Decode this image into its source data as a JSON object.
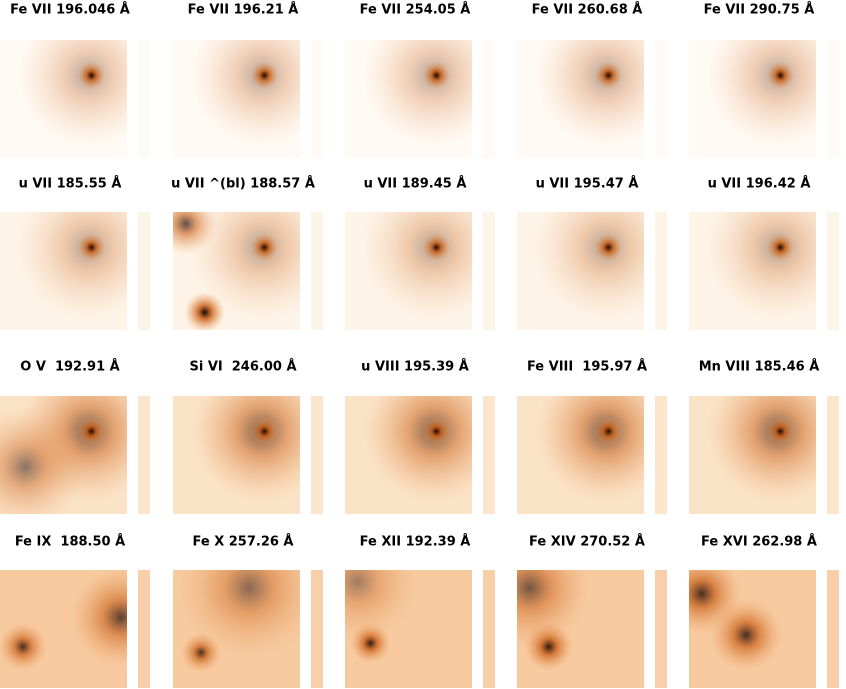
{
  "panels": [
    {
      "title": "Fe VII 196.046 Å"
    },
    {
      "title": "Fe VII 196.21 Å"
    },
    {
      "title": "Fe VII 254.05 Å"
    },
    {
      "title": "Fe VII 260.68 Å"
    },
    {
      "title": "Fe VII 290.75 Å"
    },
    {
      "title": "u VII 185.55 Å"
    },
    {
      "title": "u VII ^(bl) 188.57 Å"
    },
    {
      "title": "u VII 189.45 Å"
    },
    {
      "title": "u VII 195.47 Å"
    },
    {
      "title": "u VII 196.42 Å"
    },
    {
      "title": "O V  192.91 Å"
    },
    {
      "title": "Si VI  246.00 Å"
    },
    {
      "title": "u VIII 195.39 Å"
    },
    {
      "title": "Fe VIII  195.97 Å"
    },
    {
      "title": "Mn VIII 185.46 Å"
    },
    {
      "title": "Fe IX  188.50 Å"
    },
    {
      "title": "Fe X 257.26 Å"
    },
    {
      "title": "Fe XII 192.39 Å"
    },
    {
      "title": "Fe XIV 270.52 Å"
    },
    {
      "title": "Fe XVI 262.98 Å"
    }
  ]
}
